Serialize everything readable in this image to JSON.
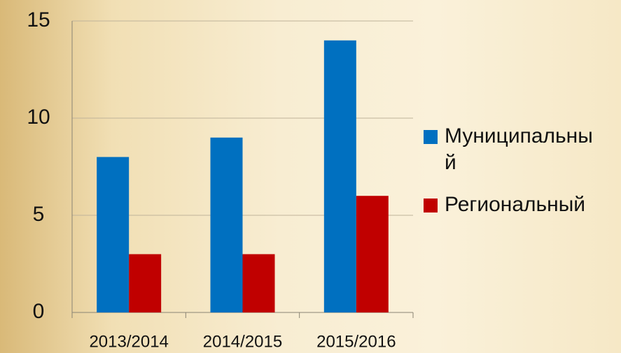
{
  "chart_data": {
    "type": "bar",
    "categories": [
      "2013/2014",
      "2014/2015",
      "2015/2016"
    ],
    "series": [
      {
        "name": "Муниципальный",
        "color": "#0070c0",
        "values": [
          8,
          9,
          14
        ]
      },
      {
        "name": "Региональный",
        "color": "#c00000",
        "values": [
          3,
          3,
          6
        ]
      }
    ],
    "ylim": [
      0,
      15
    ],
    "yticks": [
      0,
      5,
      10,
      15
    ],
    "grid": true,
    "legend": "right"
  }
}
